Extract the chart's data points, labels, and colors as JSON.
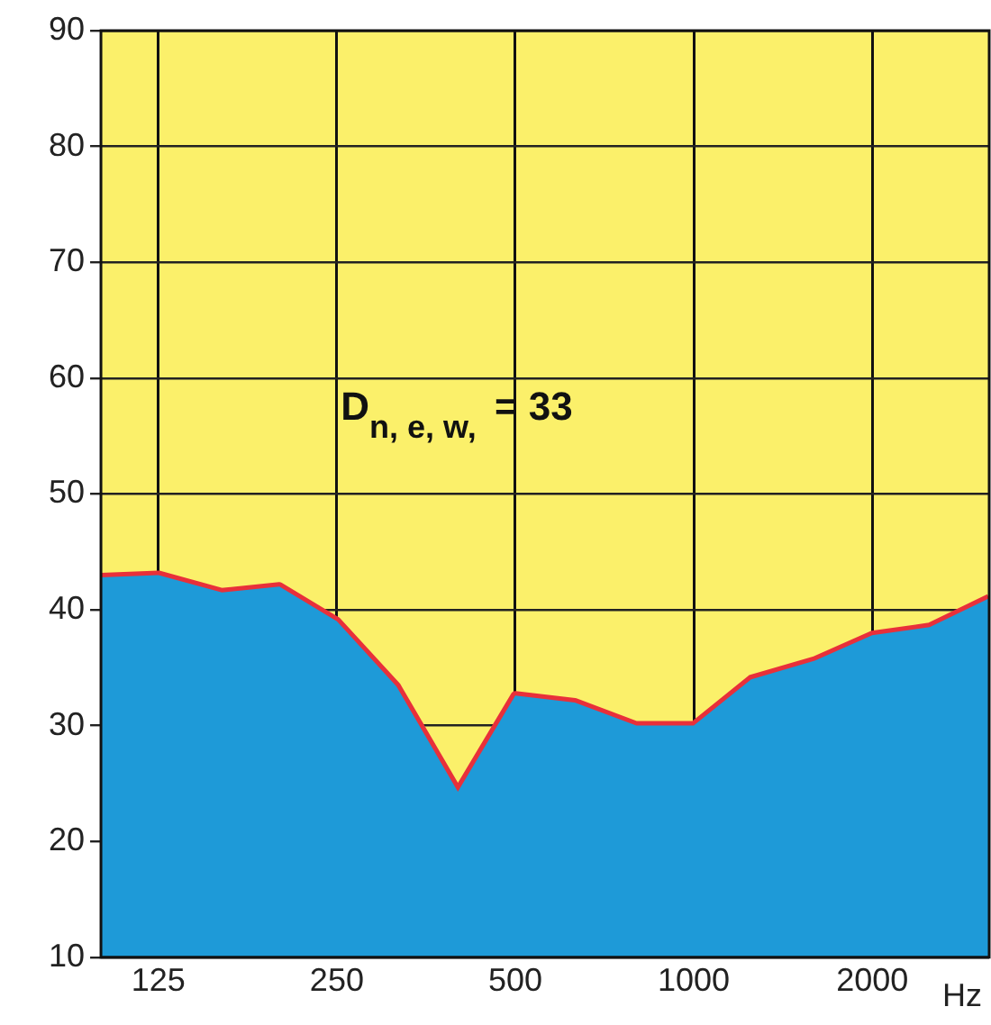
{
  "chart_data": {
    "type": "area",
    "xlabel": "Hz",
    "x": [
      100,
      125,
      160,
      200,
      250,
      315,
      400,
      500,
      630,
      800,
      1000,
      1250,
      1600,
      2000,
      2500,
      3150
    ],
    "series": [
      {
        "color": "#1e9ad8",
        "values": [
          42.8,
          43,
          41.5,
          42,
          39,
          33.4,
          24.3,
          32.6,
          32,
          30,
          30,
          34,
          35.6,
          37.8,
          38.5,
          41
        ]
      },
      {
        "type": "line",
        "color": "#e8303a",
        "values": [
          42.8,
          43,
          41.5,
          42,
          39,
          33.4,
          24.3,
          32.6,
          32,
          30,
          30,
          34,
          35.6,
          37.8,
          38.5,
          41
        ]
      }
    ],
    "log": "x",
    "xlim": [
      100,
      3150
    ],
    "xticks": [
      125,
      250,
      500,
      1000,
      2000
    ],
    "ylim": [
      10,
      90
    ],
    "yticks": [
      10,
      20,
      30,
      40,
      50,
      60,
      70,
      80,
      90
    ],
    "grid": true,
    "legend": false,
    "annotations": [
      "D$_{n, e, w,}$ = 33"
    ]
  }
}
